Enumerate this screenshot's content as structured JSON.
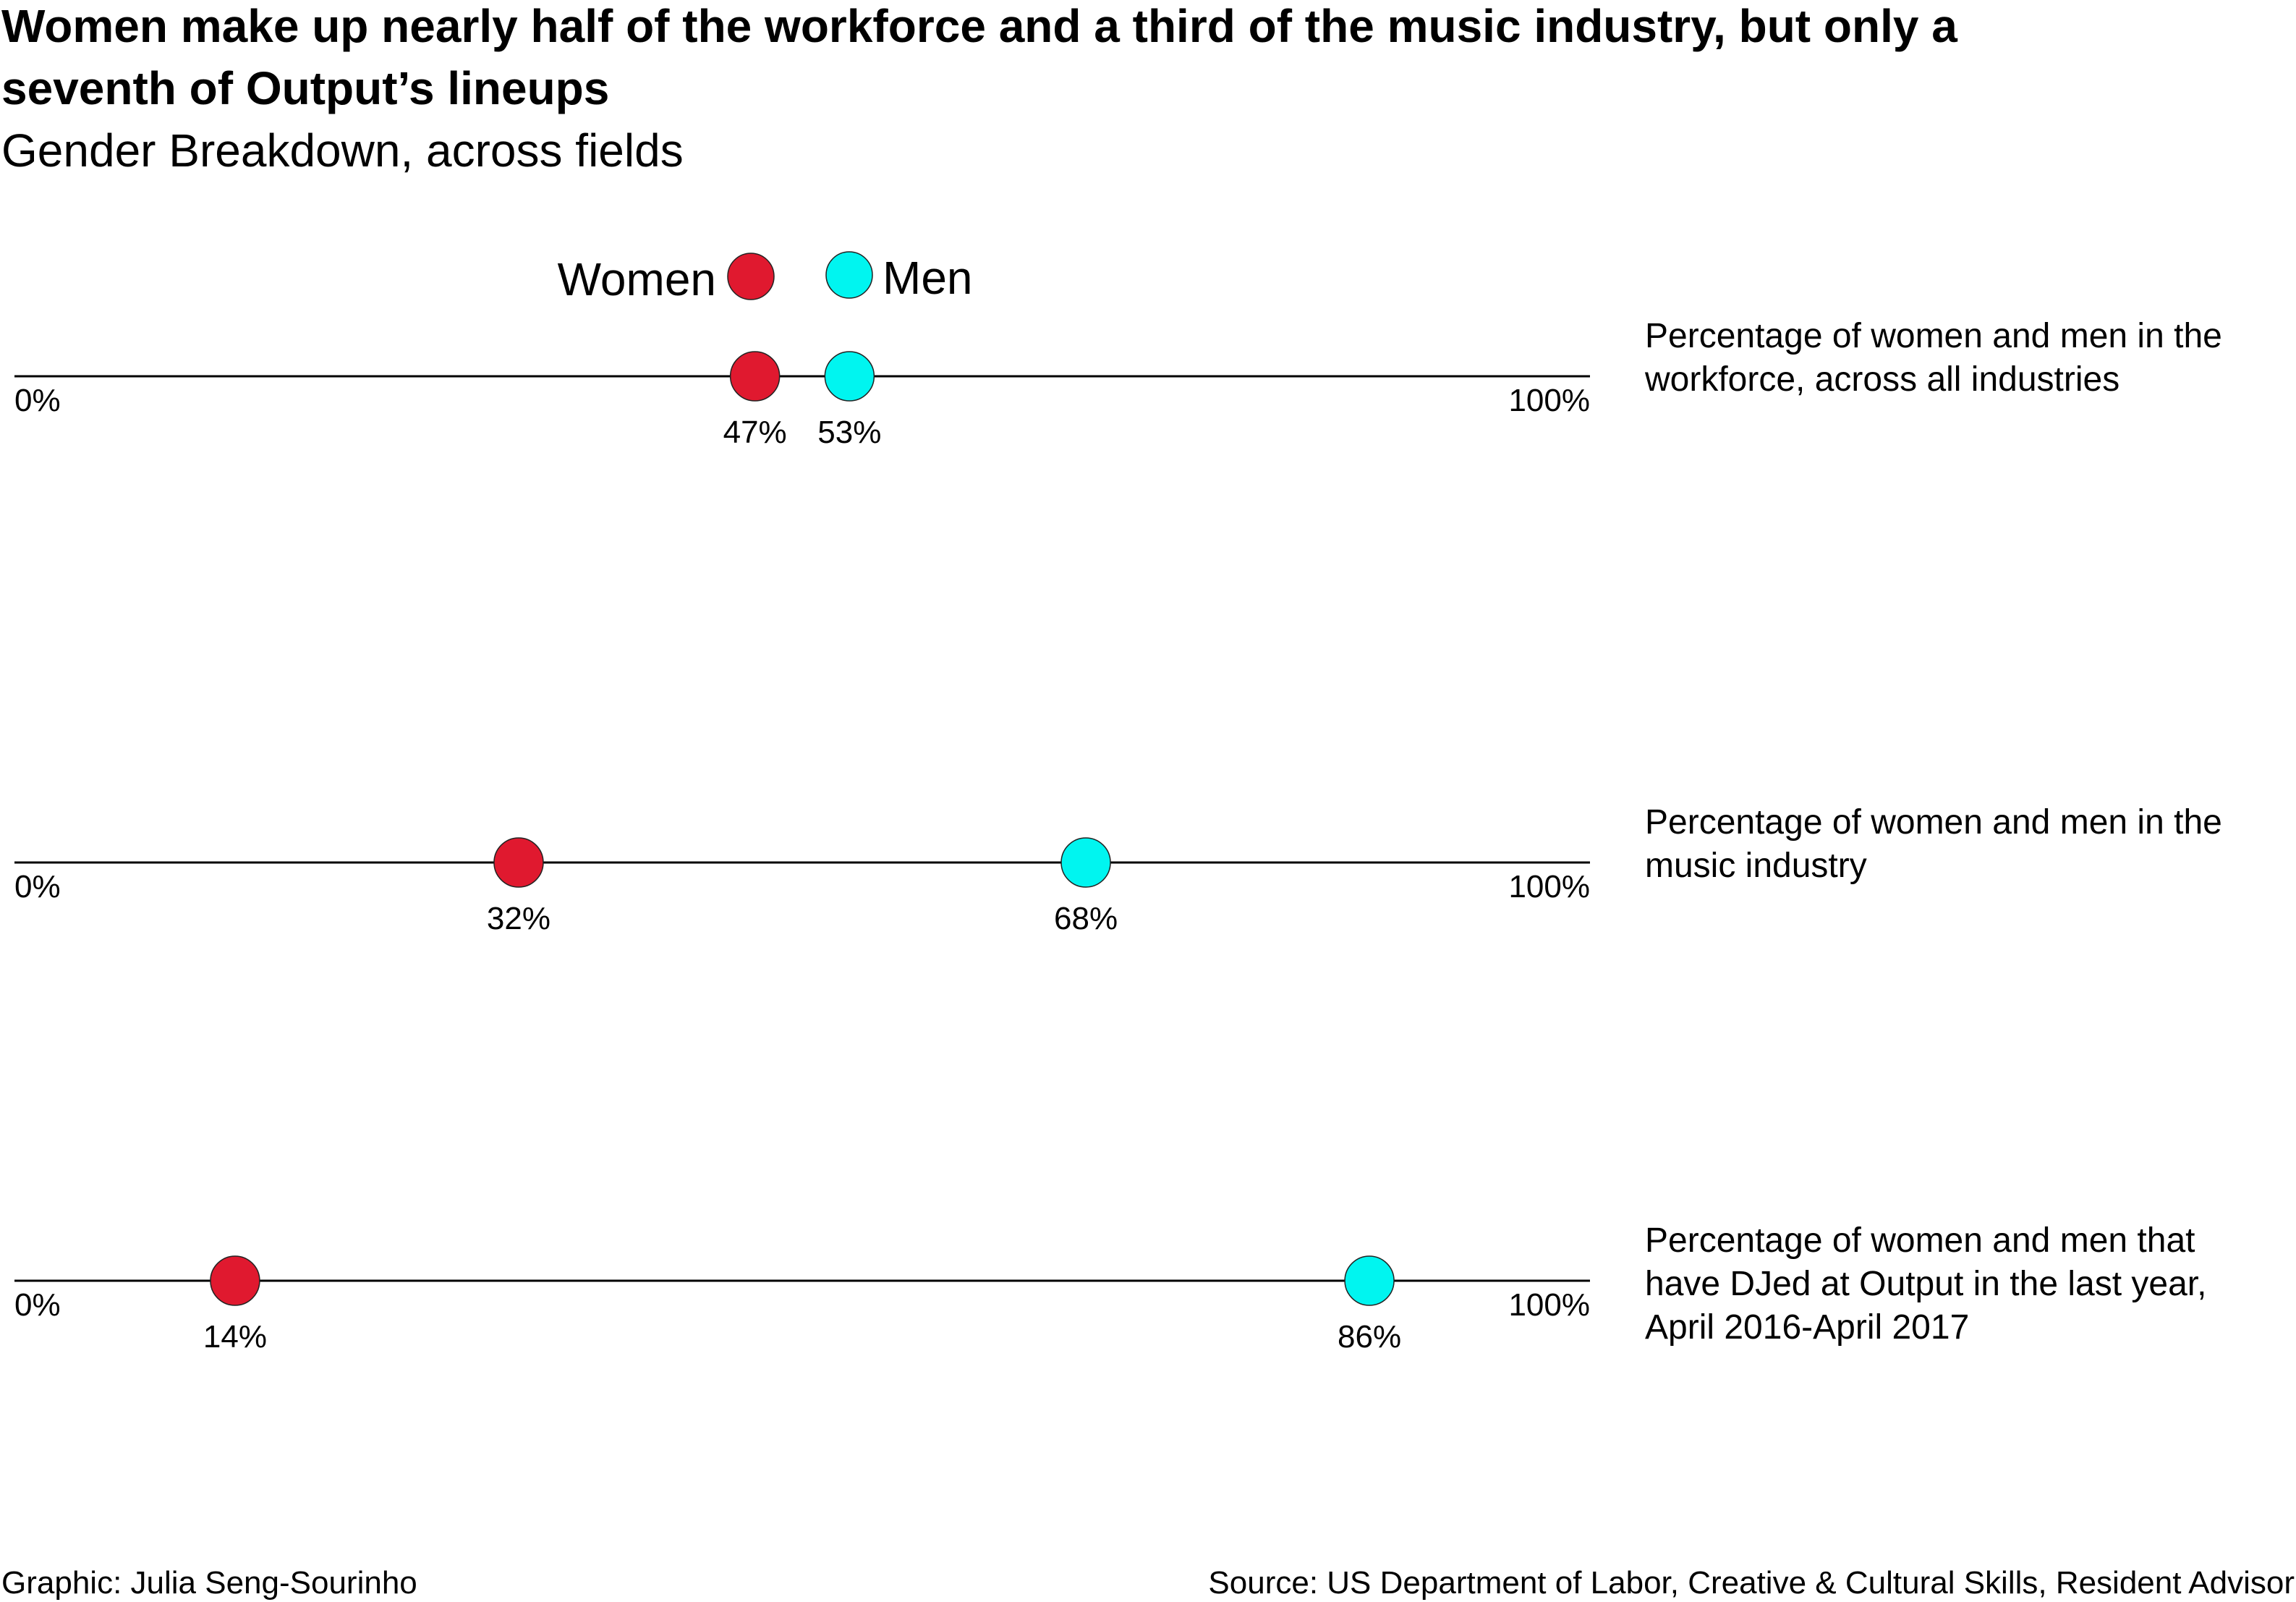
{
  "title_line1": "Women make up nearly half of the workforce and a third of the music industry, but only a",
  "title_line2": "seventh of Output’s lineups",
  "subtitle": "Gender Breakdown, across fields",
  "colors": {
    "women": "#e0192f",
    "men": "#00f5f0"
  },
  "legend": [
    {
      "label": "Women",
      "color": "#e0192f"
    },
    {
      "label": "Men",
      "color": "#00f5f0"
    }
  ],
  "footer": {
    "credit": "Graphic: Julia Seng-Sourinho",
    "source": "Source: US Department of Labor, Creative & Cultural Skills, Resident Advisor"
  },
  "chart_data": {
    "type": "scatter",
    "xlim": [
      0,
      100
    ],
    "axis_start_label": "0%",
    "axis_end_label": "100%",
    "series": [
      {
        "name": "Women",
        "values": [
          47,
          32,
          14
        ]
      },
      {
        "name": "Men",
        "values": [
          53,
          68,
          86
        ]
      }
    ],
    "rows": [
      {
        "description": [
          "Percentage of women and men in the",
          "workforce, across all industries"
        ],
        "women": 47,
        "men": 53,
        "women_label": "47%",
        "men_label": "53%"
      },
      {
        "description": [
          "Percentage of women and men in the",
          "music industry"
        ],
        "women": 32,
        "men": 68,
        "women_label": "32%",
        "men_label": "68%"
      },
      {
        "description": [
          "Percentage of women and men that",
          "have DJed at Output in the last year,",
          "April 2016-April 2017"
        ],
        "women": 14,
        "men": 86,
        "women_label": "14%",
        "men_label": "86%"
      }
    ]
  }
}
